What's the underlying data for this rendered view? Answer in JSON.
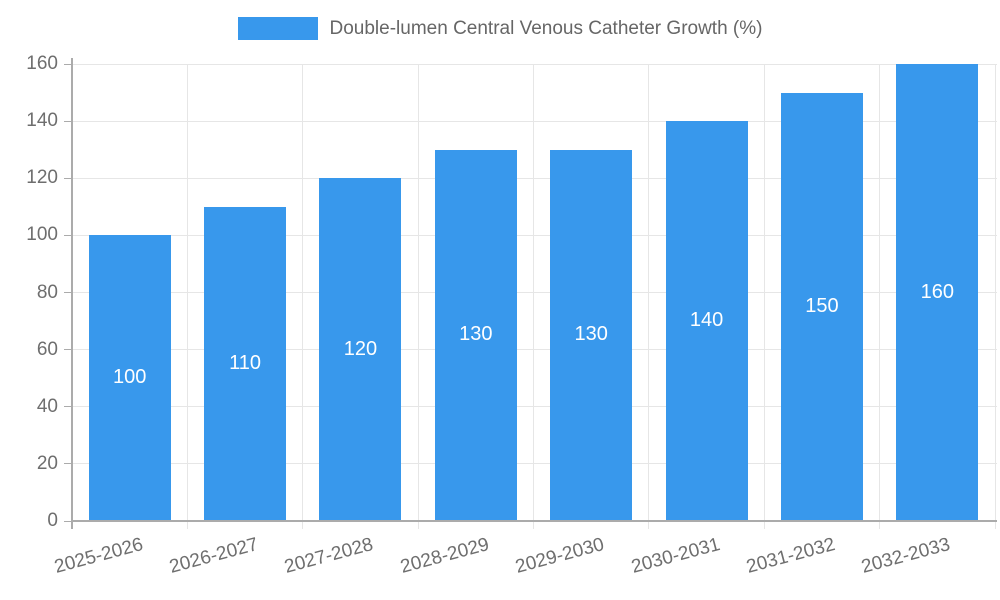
{
  "legend": {
    "label": "Double-lumen Central Venous Catheter Growth (%)"
  },
  "chart_data": {
    "type": "bar",
    "title": "Double-lumen Central Venous Catheter Growth (%)",
    "categories": [
      "2025-2026",
      "2026-2027",
      "2027-2028",
      "2028-2029",
      "2029-2030",
      "2030-2031",
      "2031-2032",
      "2032-2033"
    ],
    "values": [
      100,
      110,
      120,
      130,
      130,
      140,
      150,
      160
    ],
    "data_labels_shown": true,
    "xlabel": "",
    "ylabel": "",
    "ylim": [
      0,
      160
    ],
    "yticks": [
      0,
      20,
      40,
      60,
      80,
      100,
      120,
      140,
      160
    ],
    "grid": true,
    "legend_position": "top",
    "colors": {
      "bar": "#3898EC",
      "grid": "#E6E6E6",
      "axis": "#ABABAB",
      "tick_text": "#6E6E6E",
      "bar_label": "#FFFFFF",
      "legend_text": "#666666"
    }
  }
}
